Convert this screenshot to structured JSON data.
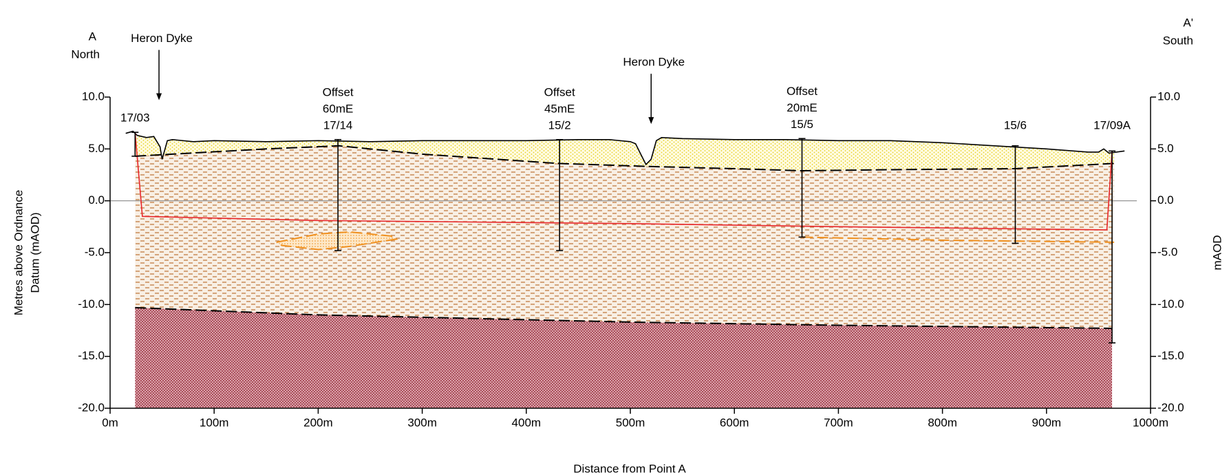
{
  "chart_data": {
    "type": "line",
    "x_label": "Distance from Point A",
    "y_label": [
      "Metres above Ordnance",
      "Datum (mAOD)"
    ],
    "y2_label": "mAOD",
    "left_labels": [
      "A",
      "North"
    ],
    "right_labels": [
      "A'",
      "South"
    ],
    "xlim": [
      0,
      1000
    ],
    "xticks": [
      {
        "value": 0,
        "label": "0m"
      },
      {
        "value": 100,
        "label": "100m"
      },
      {
        "value": 200,
        "label": "200m"
      },
      {
        "value": 300,
        "label": "300m"
      },
      {
        "value": 400,
        "label": "400m"
      },
      {
        "value": 500,
        "label": "500m"
      },
      {
        "value": 600,
        "label": "600m"
      },
      {
        "value": 700,
        "label": "700m"
      },
      {
        "value": 800,
        "label": "800m"
      },
      {
        "value": 900,
        "label": "900m"
      },
      {
        "value": 1000,
        "label": "1000m"
      }
    ],
    "ylim": [
      -20,
      10
    ],
    "yticks": [
      {
        "value": 10,
        "label": "10.0"
      },
      {
        "value": 5,
        "label": "5.0"
      },
      {
        "value": 0,
        "label": "0.0"
      },
      {
        "value": -5,
        "label": "-5.0"
      },
      {
        "value": -10,
        "label": "-10.0"
      },
      {
        "value": -15,
        "label": "-15.0"
      },
      {
        "value": -20,
        "label": "-20.0"
      }
    ],
    "y2lim": [
      -20,
      10
    ],
    "y2ticks": [
      {
        "value": 10,
        "label": "10.0"
      },
      {
        "value": 5,
        "label": "5.0"
      },
      {
        "value": 0,
        "label": "0.0"
      },
      {
        "value": -5,
        "label": "-5.0"
      },
      {
        "value": -10,
        "label": "-10.0"
      },
      {
        "value": -15,
        "label": "-15.0"
      },
      {
        "value": -20,
        "label": "-20.0"
      }
    ],
    "zero_line": true,
    "series": [
      {
        "color": "#000000",
        "dash": false,
        "x": [
          15,
          22,
          26,
          35,
          42,
          48,
          50,
          55,
          60,
          80,
          100,
          150,
          200,
          250,
          300,
          350,
          400,
          450,
          480,
          500,
          505,
          510,
          515,
          520,
          525,
          530,
          550,
          600,
          650,
          700,
          750,
          800,
          850,
          900,
          940,
          950,
          955,
          960,
          975
        ],
        "values": [
          6.5,
          6.7,
          6.3,
          6.1,
          6.2,
          5.2,
          4.0,
          5.8,
          5.9,
          5.7,
          5.8,
          5.7,
          5.8,
          5.7,
          5.8,
          5.8,
          5.8,
          5.9,
          5.9,
          5.7,
          5.5,
          4.5,
          3.5,
          4.0,
          5.8,
          6.1,
          6.0,
          5.9,
          5.9,
          5.8,
          5.8,
          5.6,
          5.3,
          5.0,
          4.7,
          4.7,
          5.0,
          4.6,
          4.8
        ]
      },
      {
        "color": "#000000",
        "dash": true,
        "x": [
          24,
          60,
          150,
          220,
          300,
          430,
          520,
          600,
          665,
          750,
          870,
          965
        ],
        "values": [
          4.3,
          4.5,
          5.0,
          5.3,
          4.5,
          3.6,
          3.3,
          3.1,
          2.9,
          3.0,
          3.1,
          3.6
        ]
      },
      {
        "color": "#e8262a",
        "dash": false,
        "x": [
          24,
          31,
          200,
          500,
          700,
          958,
          963
        ],
        "values": [
          6.6,
          -1.5,
          -1.9,
          -2.2,
          -2.5,
          -2.8,
          4.8
        ]
      },
      {
        "color": "#000000",
        "dash": true,
        "x": [
          24,
          200,
          500,
          700,
          963
        ],
        "values": [
          -10.3,
          -11.0,
          -11.7,
          -12.0,
          -12.3
        ]
      },
      {
        "color": "#f0901e",
        "dash": true,
        "x": [
          160,
          200,
          230,
          270,
          275,
          230,
          200,
          165,
          160
        ],
        "values": [
          -4.0,
          -3.2,
          -3.0,
          -3.4,
          -3.7,
          -4.4,
          -4.7,
          -4.3,
          -4.0
        ]
      },
      {
        "color": "#f0901e",
        "dash": true,
        "x": [
          665,
          800,
          965
        ],
        "values": [
          -3.5,
          -3.8,
          -4.0
        ]
      }
    ],
    "boreholes": [
      {
        "label": "17/03",
        "x": 24,
        "top": 6.6,
        "bottom": 4.3
      },
      {
        "label": "17/14",
        "offset": [
          "Offset",
          "60mE"
        ],
        "x": 219,
        "top": 5.9,
        "bottom": -4.8
      },
      {
        "label": "15/2",
        "offset": [
          "Offset",
          "45mE"
        ],
        "x": 432,
        "top": 5.9,
        "bottom": -4.8
      },
      {
        "label": "15/5",
        "offset": [
          "Offset",
          "20mE"
        ],
        "x": 665,
        "top": 6.0,
        "bottom": -3.5
      },
      {
        "label": "15/6",
        "x": 870,
        "top": 5.3,
        "bottom": -4.1
      },
      {
        "label": "17/09A",
        "x": 963,
        "top": 4.8,
        "bottom": -13.7
      }
    ],
    "annotations": [
      {
        "text": "Heron Dyke",
        "x": 47,
        "y": 9.7
      },
      {
        "text": "Heron Dyke",
        "x": 520,
        "y": 7.4
      }
    ]
  }
}
